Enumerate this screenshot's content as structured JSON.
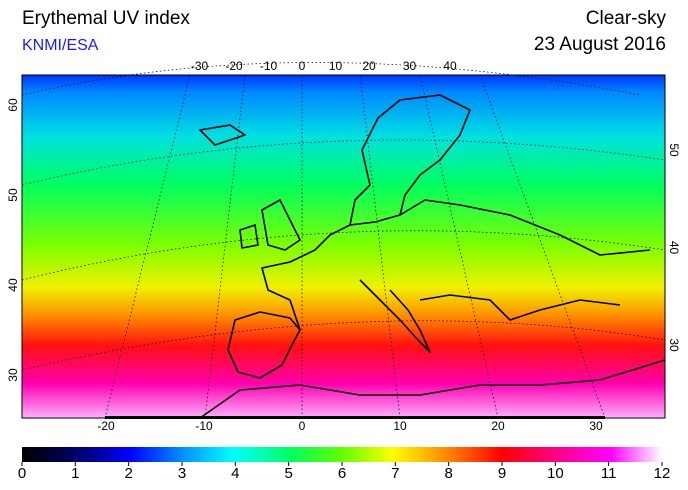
{
  "header": {
    "title": "Erythemal UV index",
    "source": "KNMI/ESA",
    "condition": "Clear-sky",
    "date": "23 August 2016"
  },
  "map": {
    "top_longitude_labels": [
      -30,
      -20,
      -10,
      0,
      10,
      20,
      30,
      40
    ],
    "bottom_longitude_labels": [
      -20,
      -10,
      0,
      10,
      20,
      30
    ],
    "left_latitude_labels": [
      60,
      50,
      40,
      30
    ],
    "right_latitude_labels": [
      50,
      40,
      30
    ]
  },
  "colorbar": {
    "range": [
      0,
      12
    ],
    "ticks": [
      0,
      1,
      2,
      3,
      4,
      5,
      6,
      7,
      8,
      9,
      10,
      11,
      12
    ]
  }
}
